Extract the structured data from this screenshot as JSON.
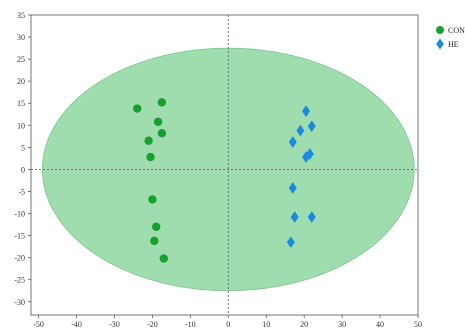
{
  "chart_data": {
    "type": "scatter",
    "title": "",
    "xlabel": "",
    "ylabel": "",
    "xlim": [
      -52,
      50
    ],
    "ylim": [
      -33,
      35
    ],
    "xticks": [
      -50,
      -40,
      -30,
      -20,
      -10,
      0,
      10,
      20,
      30,
      40,
      50
    ],
    "yticks": [
      -30,
      -25,
      -20,
      -15,
      -10,
      -5,
      0,
      5,
      10,
      15,
      20,
      25,
      30,
      35
    ],
    "grid": false,
    "origin_lines": "dotted",
    "legend_placement": "top-right",
    "ellipse": {
      "cx": 0,
      "cy": 0,
      "rx": 49,
      "ry": 27.5,
      "color": "#9fdcae",
      "stroke": "#7cc48e"
    },
    "series": [
      {
        "name": "CON",
        "marker": "circle",
        "color": "#16a02c",
        "points": [
          [
            -24,
            13.8
          ],
          [
            -17.5,
            15.2
          ],
          [
            -18.5,
            10.8
          ],
          [
            -17.5,
            8.2
          ],
          [
            -21,
            6.5
          ],
          [
            -20.5,
            2.8
          ],
          [
            -20,
            -6.8
          ],
          [
            -19,
            -13
          ],
          [
            -19.5,
            -16.2
          ],
          [
            -17,
            -20.2
          ]
        ]
      },
      {
        "name": "HE",
        "marker": "diamond",
        "color": "#1a8ae0",
        "points": [
          [
            20.5,
            13.2
          ],
          [
            22,
            9.8
          ],
          [
            19,
            8.8
          ],
          [
            17,
            6.2
          ],
          [
            21.5,
            3.5
          ],
          [
            20.5,
            2.8
          ],
          [
            17,
            -4.2
          ],
          [
            17.5,
            -10.8
          ],
          [
            22,
            -10.8
          ],
          [
            16.5,
            -16.5
          ]
        ]
      }
    ]
  }
}
